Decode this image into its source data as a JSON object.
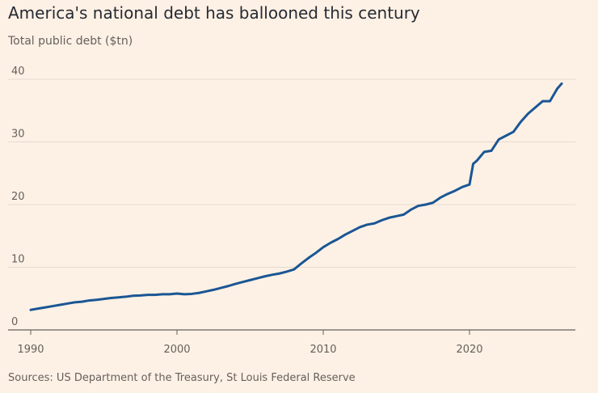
{
  "chart_data": {
    "type": "line",
    "title": "America's national debt has ballooned this century",
    "subtitle": "Total public debt ($tn)",
    "source": "Sources: US Department of the Treasury, St Louis Federal Reserve",
    "xlabel": "",
    "ylabel": "",
    "xlim": [
      1990,
      2026.5
    ],
    "ylim": [
      0,
      42
    ],
    "yticks": [
      0,
      10,
      20,
      30,
      40
    ],
    "xticks": [
      1990,
      2000,
      2010,
      2020
    ],
    "grid": true,
    "color": "#1a5694",
    "series": [
      {
        "x": [
          1990.0,
          1990.5,
          1991.0,
          1991.5,
          1992.0,
          1992.5,
          1993.0,
          1993.5,
          1994.0,
          1994.5,
          1995.0,
          1995.5,
          1996.0,
          1996.5,
          1997.0,
          1997.5,
          1998.0,
          1998.5,
          1999.0,
          1999.5,
          2000.0,
          2000.5,
          2001.0,
          2001.5,
          2002.0,
          2002.5,
          2003.0,
          2003.5,
          2004.0,
          2004.5,
          2005.0,
          2005.5,
          2006.0,
          2006.5,
          2007.0,
          2007.5,
          2008.0,
          2008.5,
          2009.0,
          2009.5,
          2010.0,
          2010.5,
          2011.0,
          2011.5,
          2012.0,
          2012.5,
          2013.0,
          2013.5,
          2014.0,
          2014.5,
          2015.0,
          2015.5,
          2016.0,
          2016.5,
          2017.0,
          2017.5,
          2018.0,
          2018.5,
          2019.0,
          2019.5,
          2020.0,
          2020.25,
          2020.5,
          2021.0,
          2021.5,
          2022.0,
          2022.5,
          2023.0,
          2023.5,
          2024.0,
          2024.5,
          2025.0,
          2025.5,
          2026.0,
          2026.3
        ],
        "values": [
          3.2,
          3.4,
          3.6,
          3.8,
          4.0,
          4.2,
          4.4,
          4.5,
          4.7,
          4.8,
          4.95,
          5.1,
          5.2,
          5.3,
          5.45,
          5.5,
          5.6,
          5.6,
          5.7,
          5.7,
          5.8,
          5.7,
          5.75,
          5.9,
          6.15,
          6.4,
          6.7,
          7.0,
          7.35,
          7.65,
          7.95,
          8.25,
          8.55,
          8.8,
          9.0,
          9.3,
          9.65,
          10.6,
          11.5,
          12.3,
          13.2,
          13.9,
          14.5,
          15.2,
          15.8,
          16.4,
          16.8,
          17.0,
          17.5,
          17.9,
          18.15,
          18.4,
          19.2,
          19.8,
          20.0,
          20.3,
          21.1,
          21.7,
          22.2,
          22.8,
          23.2,
          26.5,
          27.0,
          28.4,
          28.6,
          30.4,
          31.0,
          31.6,
          33.2,
          34.5,
          35.5,
          36.5,
          36.5,
          38.5,
          39.3
        ]
      }
    ]
  }
}
